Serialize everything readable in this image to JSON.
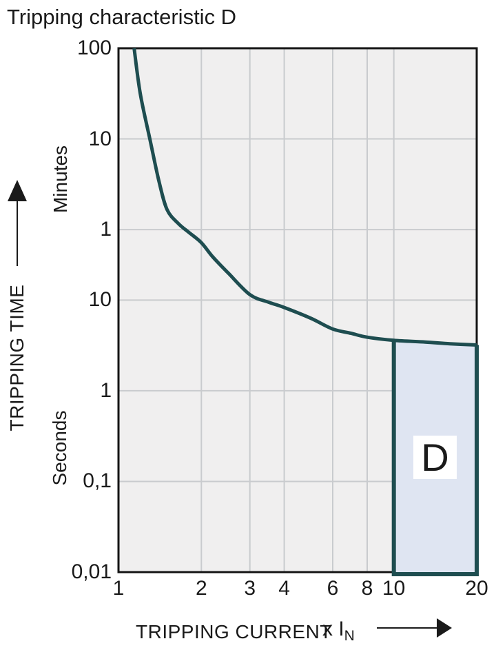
{
  "title": "Tripping characteristic D",
  "y_axis": {
    "title": "TRIPPING TIME",
    "minutes_label": "Minutes",
    "seconds_label": "Seconds"
  },
  "x_axis": {
    "title": "TRIPPING CURRENT",
    "unit_prefix": "x I",
    "unit_subscript": "N"
  },
  "region_label": "D",
  "colors": {
    "curve": "#1e4d50",
    "region_fill": "#dfe5f2",
    "region_border": "#1e4d50",
    "plot_background": "#f0efef",
    "gridline": "#c9cbce",
    "plot_border": "#141414",
    "text": "#1a1a1a",
    "region_label_background": "#ffffff"
  },
  "chart_data": {
    "type": "line",
    "title": "Tripping characteristic D",
    "x_scale": "log",
    "y_scale": "log",
    "xlabel": "TRIPPING CURRENT (x IN)",
    "ylabel": "TRIPPING TIME",
    "grid": true,
    "legend": false,
    "x_range_multiple_of_In": [
      1,
      20
    ],
    "y_range_seconds": [
      0.01,
      6000
    ],
    "x_ticks": [
      {
        "value": 1,
        "label": "1"
      },
      {
        "value": 2,
        "label": "2"
      },
      {
        "value": 3,
        "label": "3"
      },
      {
        "value": 4,
        "label": "4"
      },
      {
        "value": 6,
        "label": "6"
      },
      {
        "value": 8,
        "label": "8"
      },
      {
        "value": 10,
        "label": "10"
      },
      {
        "value": 20,
        "label": "20"
      }
    ],
    "y_ticks": [
      {
        "seconds": 6000,
        "label": "100",
        "unit": "minutes"
      },
      {
        "seconds": 600,
        "label": "10",
        "unit": "minutes"
      },
      {
        "seconds": 60,
        "label": "1",
        "unit": "minutes"
      },
      {
        "seconds": 10,
        "label": "10",
        "unit": "seconds"
      },
      {
        "seconds": 1,
        "label": "1",
        "unit": "seconds"
      },
      {
        "seconds": 0.1,
        "label": "0,1",
        "unit": "seconds"
      },
      {
        "seconds": 0.01,
        "label": "0,01",
        "unit": "seconds"
      }
    ],
    "series": [
      {
        "name": "tripping-curve-D",
        "color": "#1e4d50",
        "points_multiple_seconds": [
          [
            1.14,
            6000
          ],
          [
            1.2,
            1900
          ],
          [
            1.3,
            600
          ],
          [
            1.4,
            210
          ],
          [
            1.5,
            100
          ],
          [
            1.65,
            70
          ],
          [
            1.8,
            56
          ],
          [
            2,
            43
          ],
          [
            2.2,
            30
          ],
          [
            2.5,
            20
          ],
          [
            3,
            11.5
          ],
          [
            3.5,
            9.5
          ],
          [
            4,
            8.3
          ],
          [
            5,
            6.3
          ],
          [
            6,
            4.8
          ],
          [
            7,
            4.3
          ],
          [
            8,
            3.9
          ],
          [
            10,
            3.6
          ],
          [
            13,
            3.45
          ],
          [
            16,
            3.3
          ],
          [
            20,
            3.2
          ]
        ]
      }
    ],
    "trip_region": {
      "label": "D",
      "x_from_multiple": 10,
      "x_to_multiple": 20,
      "y_from_seconds": 0.01,
      "y_to": "curve",
      "fill": "#dfe5f2"
    }
  }
}
